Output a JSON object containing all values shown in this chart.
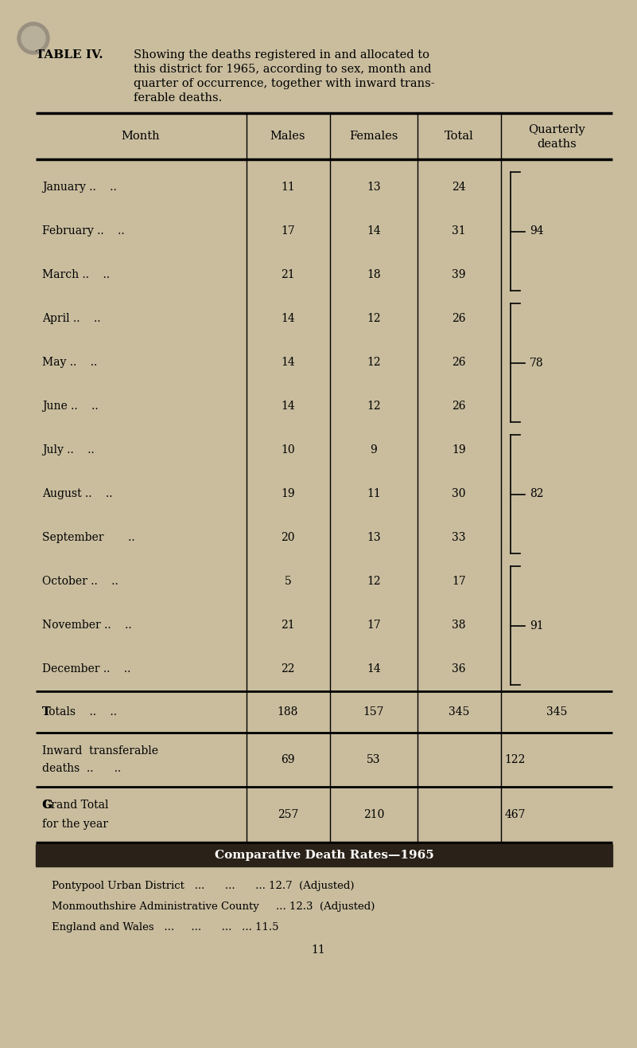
{
  "bg_color": "#c9bd9e",
  "title_bold": "TABLE IV.",
  "title_text": "Showing the deaths registered in and allocated to\nthis district for 1965, according to sex, month and\nquarter of occurrence, together with inward trans-\nferable deaths.",
  "months": [
    "January",
    "February",
    "March",
    "April",
    "May",
    "June",
    "July",
    "August",
    "September",
    "October",
    "November",
    "December"
  ],
  "month_dots": [
    " ..    ..",
    " ..    ..",
    " ..    ..",
    " ..    ..",
    " ..    ..",
    " ..    ..",
    " ..    ..",
    " ..    ..",
    "       ..",
    " ..    ..",
    " ..    ..",
    " ..    .."
  ],
  "males": [
    11,
    17,
    21,
    14,
    14,
    14,
    10,
    19,
    20,
    5,
    21,
    22
  ],
  "females": [
    13,
    14,
    18,
    12,
    12,
    12,
    9,
    11,
    13,
    12,
    17,
    14
  ],
  "totals": [
    24,
    31,
    39,
    26,
    26,
    26,
    19,
    30,
    33,
    17,
    38,
    36
  ],
  "quarterly": [
    {
      "value": 94,
      "rows": [
        0,
        1,
        2
      ]
    },
    {
      "value": 78,
      "rows": [
        3,
        4,
        5
      ]
    },
    {
      "value": 82,
      "rows": [
        6,
        7,
        8
      ]
    },
    {
      "value": 91,
      "rows": [
        9,
        10,
        11
      ]
    }
  ],
  "totals_label": "Totals",
  "totals_males": 188,
  "totals_females": 157,
  "totals_total": 345,
  "totals_quarterly": 345,
  "inward_label1": "Inward  transferable",
  "inward_label2": "deaths  ..      ..",
  "inward_males": 69,
  "inward_females": 53,
  "inward_combined": 122,
  "grand_label1": "Grand Total",
  "grand_label2": "for the year",
  "grand_males": 257,
  "grand_females": 210,
  "grand_combined": 467,
  "comp_title": "Comparative Death Rates—1965",
  "comp_line1": "Pontypool Urban District   ...      ...      ... 12.7  (Adjusted)",
  "comp_line2": "Monmouthshire Administrative County     ... 12.3  (Adjusted)",
  "comp_line3": "England and Wales   ...     ...      ...   ... 11.5",
  "page_number": "11"
}
